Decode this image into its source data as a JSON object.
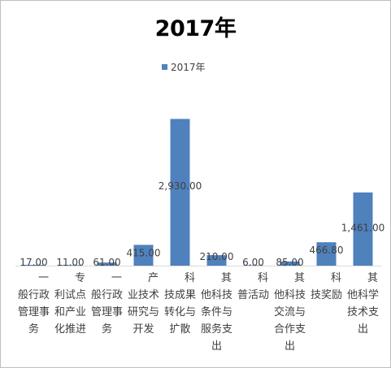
{
  "chart_data": {
    "type": "bar",
    "title": "2017年",
    "legend": {
      "position": "top",
      "entries": [
        "2017年"
      ]
    },
    "categories": [
      [
        "一",
        "般行政",
        "管理事",
        "务"
      ],
      [
        "专",
        "利试点",
        "和产业",
        "化推进"
      ],
      [
        "一",
        "般行政",
        "管理事",
        "务"
      ],
      [
        "产",
        "业技术",
        "研究与",
        "开发"
      ],
      [
        "科",
        "技成果",
        "转化与",
        "扩散"
      ],
      [
        "其",
        "他科技",
        "条件与",
        "服务支",
        "出"
      ],
      [
        "科",
        "普活动"
      ],
      [
        "其",
        "他科技",
        "交流与",
        "合作支",
        "出"
      ],
      [
        "科",
        "技奖励"
      ],
      [
        "其",
        "他科学",
        "技术支",
        "出"
      ]
    ],
    "series": [
      {
        "name": "2017年",
        "values": [
          17.0,
          11.0,
          61.0,
          415.0,
          2930.0,
          210.0,
          6.0,
          85.0,
          466.8,
          1461.0
        ],
        "labels": [
          "17.00",
          "11.00",
          "61.00",
          "415.00",
          "2,930.00",
          "210.00",
          "6.00",
          "85.00",
          "466.80",
          "1,461.00"
        ],
        "color": "#4f81bd"
      }
    ],
    "ylim": [
      0,
      3650
    ],
    "grid": false,
    "xlabel": "",
    "ylabel": ""
  }
}
